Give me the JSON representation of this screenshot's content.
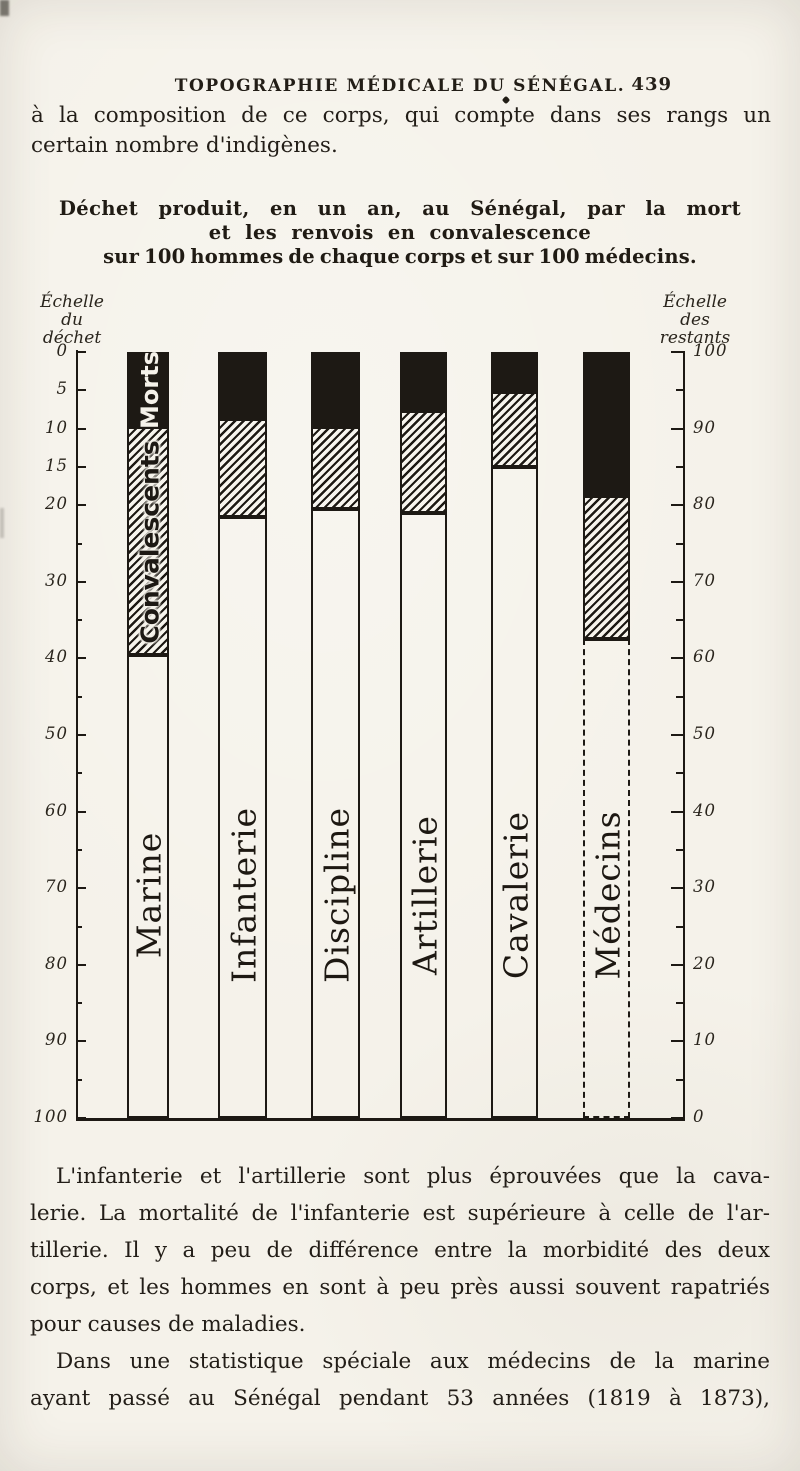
{
  "header": {
    "title": "TOPOGRAPHIE MÉDICALE DU SÉNÉGAL.",
    "page_number": "439"
  },
  "intro_lines": [
    "à la composition de ce corps, qui compte dans ses rangs un",
    "certain nombre d'indigènes."
  ],
  "chart_data": {
    "type": "bar",
    "stacked": true,
    "title": "Déchet produit, en un an, au Sénégal, par la mort et les renvois en convalescence sur 100 hommes de chaque corps et sur 100 médecins.",
    "title_lines": [
      "Déchet produit, en un an, au Sénégal, par la mort",
      "et les renvois en convalescence",
      "sur 100 hommes de chaque corps et sur 100 médecins."
    ],
    "categories": [
      "Marine",
      "Infanterie",
      "Discipline",
      "Artillerie",
      "Cavalerie",
      "Médecins"
    ],
    "series": [
      {
        "name": "Morts",
        "style": "solid-black",
        "values": [
          10,
          9,
          10,
          8,
          5.5,
          19
        ]
      },
      {
        "name": "Convalescents",
        "style": "diagonal-hatch",
        "values": [
          29.5,
          12.5,
          10.5,
          13,
          9.5,
          18.5
        ]
      },
      {
        "name": "Restants",
        "style": "white",
        "values": [
          60.5,
          78.5,
          79.5,
          79,
          85,
          62.5
        ]
      }
    ],
    "left_axis": {
      "caption_lines": [
        "Échelle",
        "du",
        "déchet"
      ],
      "range": [
        0,
        100
      ],
      "increases": "downward",
      "tick_labels": [
        "0",
        "5",
        "10",
        "15",
        "20",
        "30",
        "40",
        "50",
        "60",
        "70",
        "80",
        "90",
        "100"
      ],
      "minor_ticks": [
        25,
        35,
        45,
        55,
        65,
        75,
        85,
        95
      ]
    },
    "right_axis": {
      "caption_lines": [
        "Échelle",
        "des",
        "restants"
      ],
      "range": [
        100,
        0
      ],
      "increases": "upward",
      "tick_labels": [
        "100",
        "90",
        "80",
        "70",
        "60",
        "50",
        "40",
        "30",
        "20",
        "10",
        "0"
      ],
      "minor_ticks": [
        95,
        85,
        75,
        65,
        55,
        45,
        35,
        25,
        15,
        5
      ]
    },
    "dashed_bar_index": 5,
    "ink_color": "#1d1914",
    "paper_color": "#f5f2ea",
    "legend_position": "inside-first-bar",
    "grid": false
  },
  "paragraphs": {
    "p1_lines": [
      "L'infanterie et l'artillerie sont plus éprouvées que la cava-",
      "lerie. La mortalité de l'infanterie est supérieure à celle de l'ar-",
      "tillerie. Il y a peu de différence entre la morbidité des deux",
      "corps, et les hommes en sont à peu près aussi souvent rapatriés",
      "pour causes de maladies."
    ],
    "p2_lines": [
      "Dans une statistique spéciale aux médecins de la marine",
      "ayant passé au Sénégal pendant 53 années (1819 à 1873),"
    ]
  }
}
